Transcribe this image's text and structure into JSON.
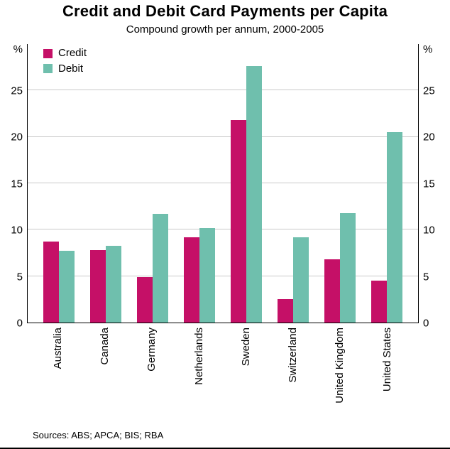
{
  "chart_data": {
    "type": "bar",
    "title": "Credit and Debit Card Payments per Capita",
    "subtitle": "Compound growth per annum, 2000-2005",
    "categories": [
      "Australia",
      "Canada",
      "Germany",
      "Netherlands",
      "Sweden",
      "Switzerland",
      "United Kingdom",
      "United States"
    ],
    "series": [
      {
        "name": "Credit",
        "color": "#C51067",
        "values": [
          8.7,
          7.8,
          4.9,
          9.2,
          21.8,
          2.5,
          6.8,
          4.5
        ]
      },
      {
        "name": "Debit",
        "color": "#6FBFAD",
        "values": [
          7.7,
          8.3,
          11.7,
          10.2,
          27.6,
          9.2,
          11.8,
          20.5
        ]
      }
    ],
    "ylabel_left": "%",
    "ylabel_right": "%",
    "yticks": [
      0,
      5,
      10,
      15,
      20,
      25
    ],
    "ylim": [
      0,
      30
    ],
    "grid": true,
    "legend_position": "top-left",
    "bar_unit": "percent"
  },
  "footer": {
    "sources": "Sources: ABS; APCA; BIS; RBA"
  }
}
